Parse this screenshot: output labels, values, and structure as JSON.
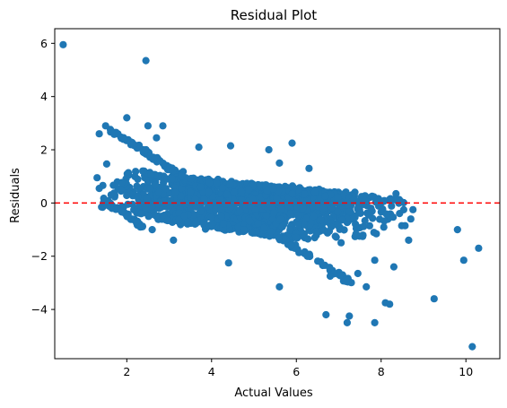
{
  "chart_data": {
    "type": "scatter",
    "title": "Residual Plot",
    "xlabel": "Actual Values",
    "ylabel": "Residuals",
    "xlim": [
      0.3,
      10.8
    ],
    "ylim": [
      -5.85,
      6.55
    ],
    "xticks": [
      2,
      4,
      6,
      8,
      10
    ],
    "yticks": [
      -4,
      -2,
      0,
      2,
      4,
      6
    ],
    "ytick_labels": [
      "−4",
      "−2",
      "0",
      "2",
      "4",
      "6"
    ],
    "marker_color": "#1f77b4",
    "reference_line": {
      "y": 0,
      "color": "#ff0000",
      "style": "dashed"
    },
    "grid": false,
    "legend": "none",
    "outliers": [
      {
        "x": 0.5,
        "y": 5.95
      },
      {
        "x": 2.45,
        "y": 5.35
      },
      {
        "x": 2.0,
        "y": 3.2
      },
      {
        "x": 1.5,
        "y": 2.9
      },
      {
        "x": 2.5,
        "y": 2.9
      },
      {
        "x": 2.85,
        "y": 2.9
      },
      {
        "x": 1.35,
        "y": 2.6
      },
      {
        "x": 2.7,
        "y": 2.45
      },
      {
        "x": 3.7,
        "y": 2.1
      },
      {
        "x": 4.45,
        "y": 2.15
      },
      {
        "x": 5.35,
        "y": 2.0
      },
      {
        "x": 5.9,
        "y": 2.25
      },
      {
        "x": 6.3,
        "y": 1.3
      },
      {
        "x": 5.6,
        "y": 1.5
      },
      {
        "x": 9.8,
        "y": -1.0
      },
      {
        "x": 10.3,
        "y": -1.7
      },
      {
        "x": 9.95,
        "y": -2.15
      },
      {
        "x": 9.25,
        "y": -3.6
      },
      {
        "x": 10.15,
        "y": -5.4
      },
      {
        "x": 7.85,
        "y": -4.5
      },
      {
        "x": 7.2,
        "y": -4.5
      },
      {
        "x": 6.7,
        "y": -4.2
      },
      {
        "x": 7.25,
        "y": -4.25
      },
      {
        "x": 8.1,
        "y": -3.75
      },
      {
        "x": 8.2,
        "y": -3.8
      },
      {
        "x": 7.65,
        "y": -3.15
      },
      {
        "x": 5.6,
        "y": -3.15
      },
      {
        "x": 7.45,
        "y": -2.65
      },
      {
        "x": 8.3,
        "y": -2.4
      },
      {
        "x": 7.85,
        "y": -2.15
      },
      {
        "x": 6.8,
        "y": -2.75
      },
      {
        "x": 2.6,
        "y": -1.0
      },
      {
        "x": 3.1,
        "y": -1.4
      },
      {
        "x": 4.4,
        "y": -2.25
      },
      {
        "x": 8.65,
        "y": -1.4
      },
      {
        "x": 8.7,
        "y": -0.6
      },
      {
        "x": 8.75,
        "y": -0.25
      },
      {
        "x": 8.35,
        "y": 0.35
      },
      {
        "x": 1.3,
        "y": 0.95
      },
      {
        "x": 1.35,
        "y": 0.55
      }
    ],
    "cloud": {
      "count": 1700,
      "x_min": 1.4,
      "x_max": 8.6,
      "center_at_x_min": 0.35,
      "center_at_x_max": -0.25,
      "upper_band": [
        [
          1.4,
          2.5
        ],
        [
          3.0,
          1.5
        ],
        [
          5.0,
          1.1
        ],
        [
          7.0,
          0.7
        ],
        [
          8.6,
          0.3
        ]
      ],
      "lower_band": [
        [
          1.4,
          -0.4
        ],
        [
          3.0,
          -1.3
        ],
        [
          5.0,
          -2.1
        ],
        [
          7.0,
          -2.6
        ],
        [
          8.6,
          -1.1
        ]
      ]
    },
    "diagonal_streaks": [
      {
        "x_start": 1.6,
        "x_end": 4.3,
        "y_start": 2.75,
        "y_end": 0.0,
        "count": 110
      },
      {
        "x_start": 4.2,
        "x_end": 7.3,
        "y_start": 0.1,
        "y_end": -3.0,
        "count": 110
      },
      {
        "x_start": 1.45,
        "x_end": 2.4,
        "y_start": 0.1,
        "y_end": -0.9,
        "count": 40
      }
    ]
  }
}
